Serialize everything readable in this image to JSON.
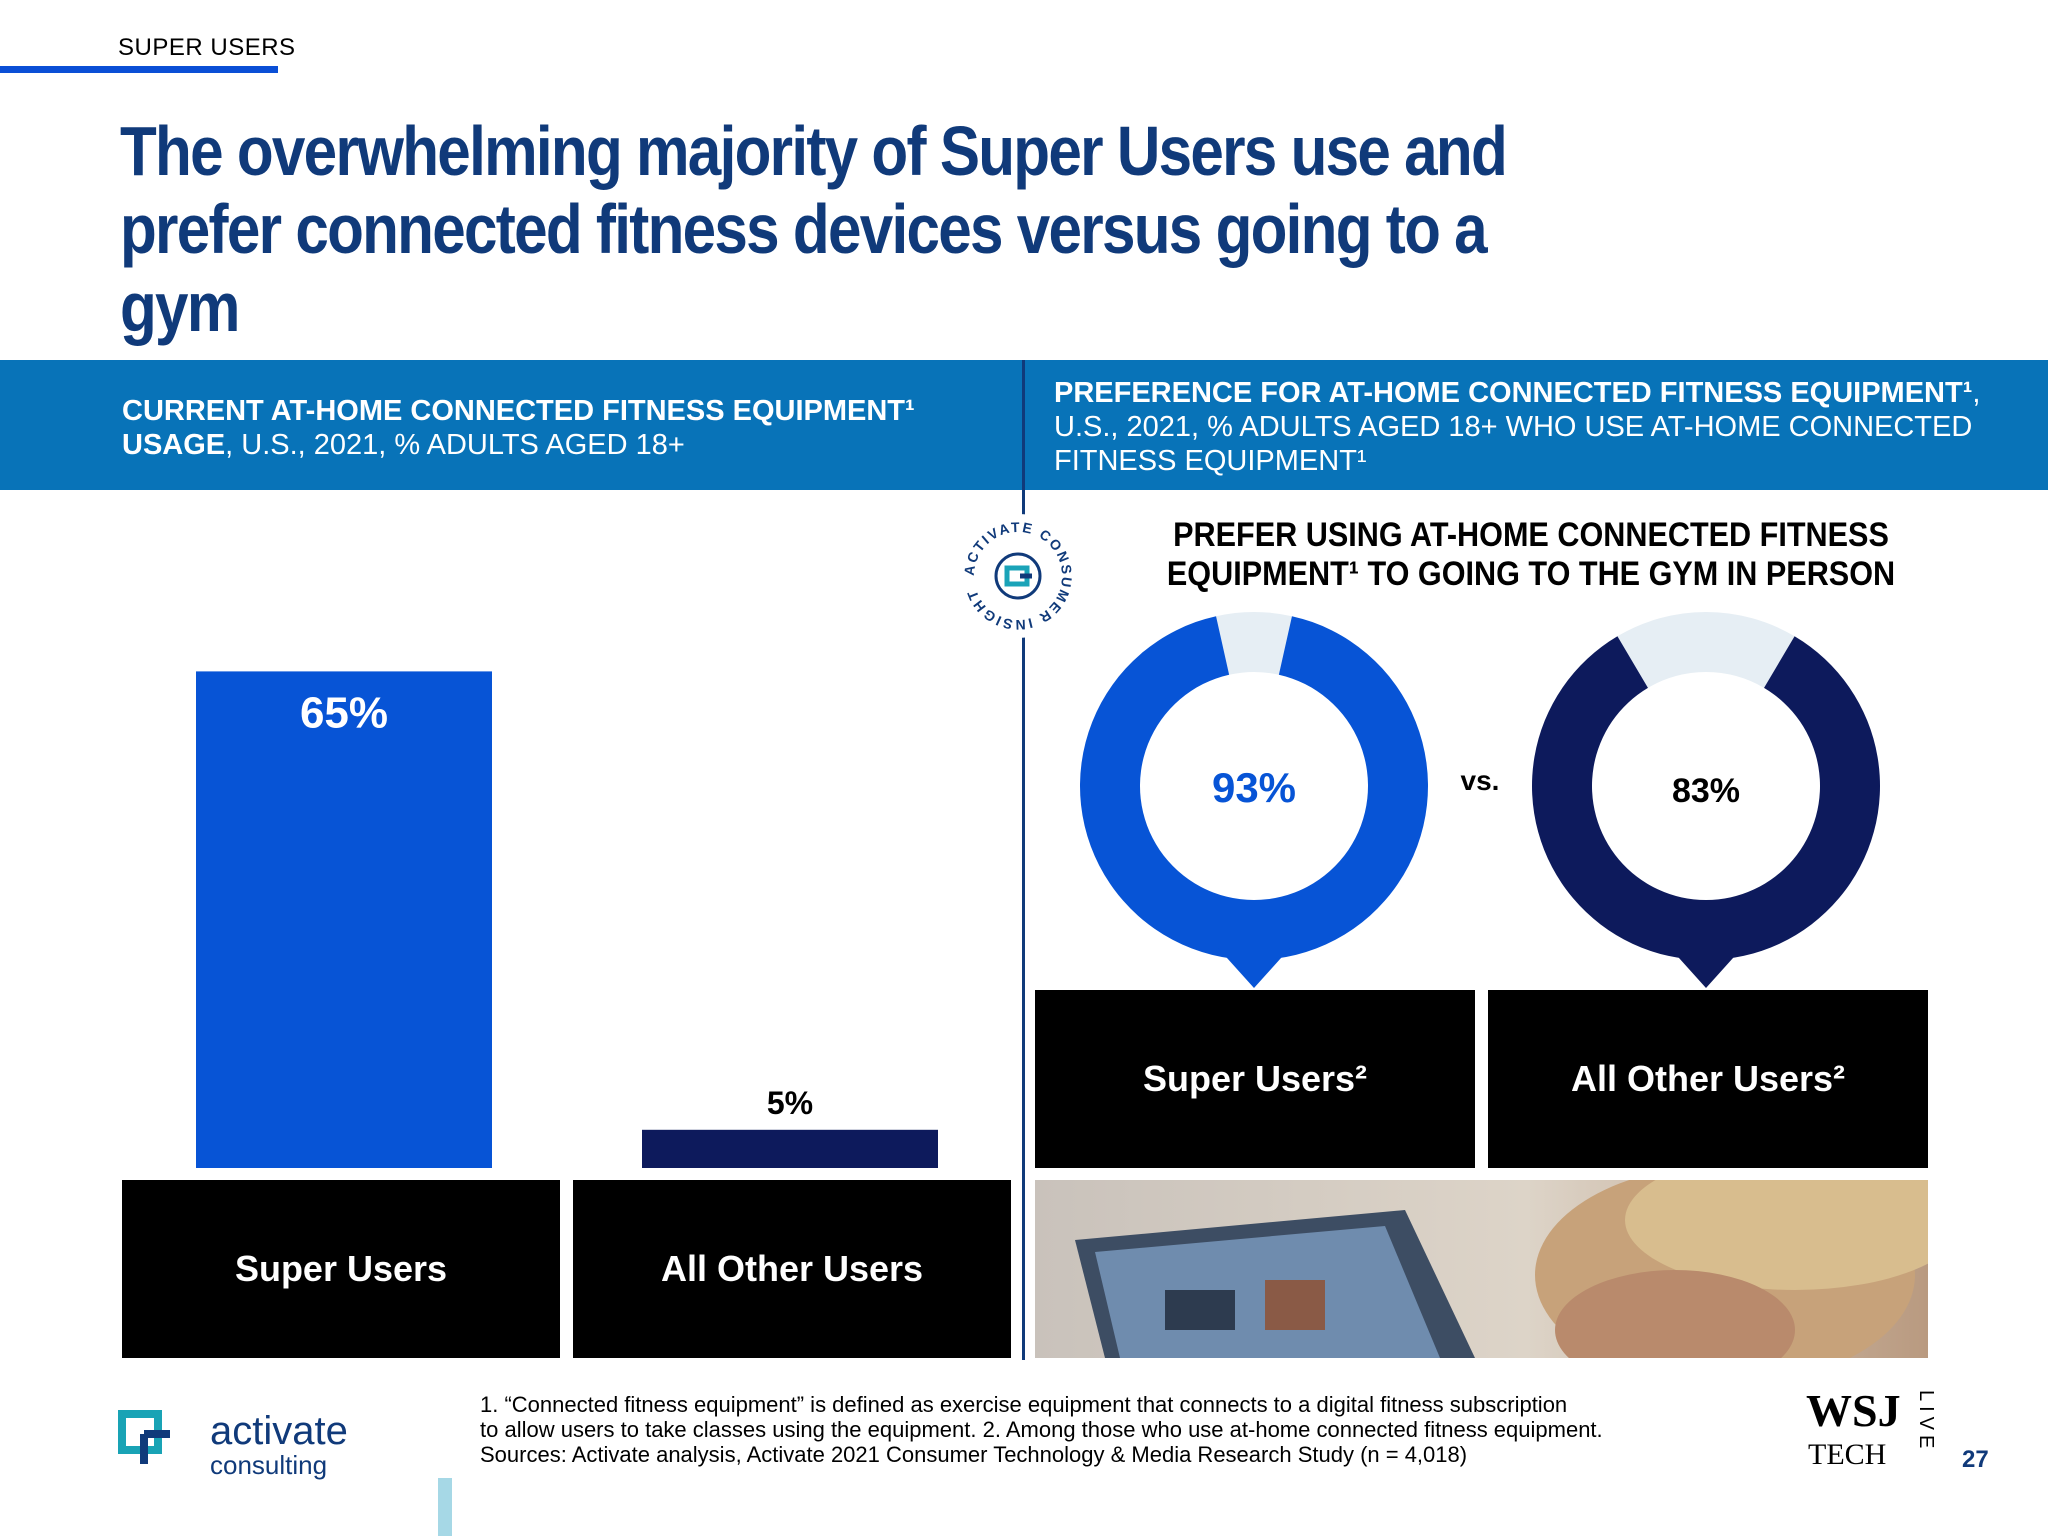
{
  "section_tag": "SUPER USERS",
  "title": "The overwhelming majority of Super Users use and prefer connected fitness devices versus going to a gym",
  "left_header": {
    "bold": "CURRENT AT-HOME CONNECTED FITNESS EQUIPMENT¹ USAGE",
    "rest": ", U.S., 2021, % ADULTS AGED 18+"
  },
  "right_header": {
    "bold": "PREFERENCE FOR AT-HOME CONNECTED FITNESS EQUIPMENT¹",
    "rest": ", U.S., 2021, % ADULTS AGED 18+ WHO USE AT-HOME CONNECTED FITNESS EQUIPMENT¹"
  },
  "seal_text": "ACTIVATE CONSUMER INSIGHT",
  "right_subtitle": "PREFER USING AT-HOME CONNECTED FITNESS EQUIPMENT¹ TO GOING TO THE GYM IN PERSON",
  "vs_label": "vs.",
  "chart_data": [
    {
      "type": "bar",
      "title": "CURRENT AT-HOME CONNECTED FITNESS EQUIPMENT¹ USAGE, U.S., 2021, % ADULTS AGED 18+",
      "categories": [
        "Super Users",
        "All Other Users"
      ],
      "values": [
        65,
        5
      ],
      "data_labels": [
        "65%",
        "5%"
      ],
      "colors": [
        "#0754d6",
        "#0d1a5c"
      ],
      "ylim": [
        0,
        100
      ],
      "grid": false
    },
    {
      "type": "pie",
      "title": "PREFER USING AT-HOME CONNECTED FITNESS EQUIPMENT¹ TO GOING TO THE GYM IN PERSON",
      "categories": [
        "Super Users²",
        "All Other Users²"
      ],
      "values": [
        93,
        83
      ],
      "data_labels": [
        "93%",
        "83%"
      ],
      "colors": [
        "#0754d6",
        "#0d1a5c"
      ],
      "remainder_color": "#e6eef4"
    }
  ],
  "donut_categories": [
    "Super Users",
    "All Other Users"
  ],
  "footnote": {
    "line1": "1. “Connected fitness equipment” is defined as exercise equipment that connects to a digital fitness subscription",
    "line2": "to allow users to take classes using the equipment.  2. Among those who use at-home connected fitness equipment.",
    "line3": "Sources: Activate analysis, Activate 2021 Consumer Technology & Media Research Study (n = 4,018)"
  },
  "logo": {
    "name": "activate",
    "sub": "consulting"
  },
  "wsj": {
    "top": "WSJ",
    "bottom": "TECH",
    "side": "LIVE"
  },
  "page_number": "27",
  "colors": {
    "brand_blue": "#103a7a",
    "band_blue": "#0873b8",
    "bar_blue": "#0754d6",
    "navy": "#0d1a5c"
  }
}
